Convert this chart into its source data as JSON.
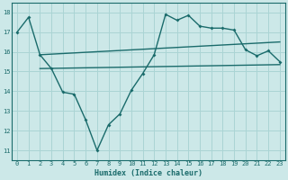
{
  "xlabel": "Humidex (Indice chaleur)",
  "bg_color": "#cce8e8",
  "grid_color": "#aad4d4",
  "line_color": "#1a6b6b",
  "xlim": [
    -0.5,
    23.5
  ],
  "ylim": [
    10.5,
    18.5
  ],
  "xticks": [
    0,
    1,
    2,
    3,
    4,
    5,
    6,
    7,
    8,
    9,
    10,
    11,
    12,
    13,
    14,
    15,
    16,
    17,
    18,
    19,
    20,
    21,
    22,
    23
  ],
  "yticks": [
    11,
    12,
    13,
    14,
    15,
    16,
    17,
    18
  ],
  "jagged_x": [
    0,
    1,
    2,
    3,
    4,
    5,
    6,
    7,
    8,
    9,
    10,
    11,
    12,
    13,
    14,
    15,
    16,
    17,
    18,
    19,
    20,
    21,
    22,
    23
  ],
  "jagged_y": [
    17.0,
    17.75,
    15.85,
    15.15,
    13.95,
    13.85,
    12.55,
    11.0,
    12.3,
    12.85,
    14.05,
    14.9,
    15.85,
    17.9,
    17.6,
    17.85,
    17.3,
    17.2,
    17.2,
    17.1,
    16.1,
    15.8,
    16.05,
    15.5
  ],
  "flat_line_x": [
    2,
    23
  ],
  "flat_line_y": [
    15.15,
    15.35
  ],
  "trend_line_x": [
    2,
    23
  ],
  "trend_line_y": [
    15.85,
    16.5
  ]
}
